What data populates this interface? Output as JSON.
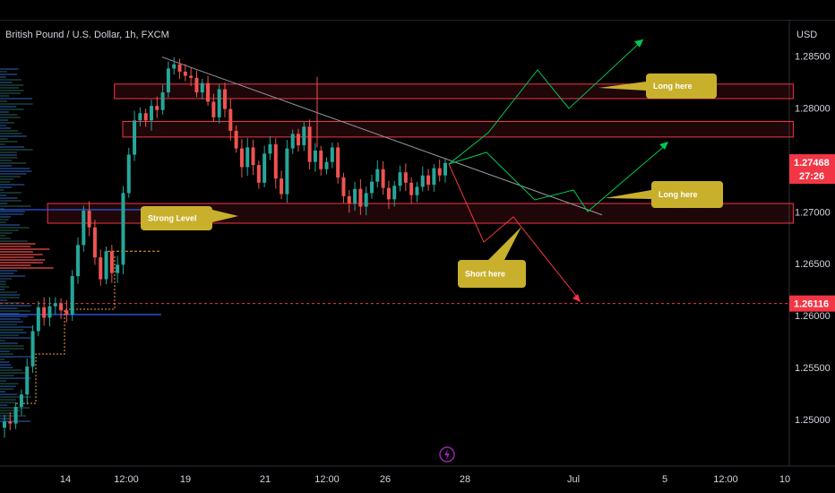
{
  "header": {
    "symbol_label": "British Pound / U.S. Dollar, 1h, FXCM"
  },
  "chart_data": {
    "type": "candlestick",
    "currency_label": "USD",
    "ylim": [
      1.2455,
      1.2885
    ],
    "y_ticks": [
      {
        "value": 1.285,
        "label": "1.28500"
      },
      {
        "value": 1.28,
        "label": "1.28000"
      },
      {
        "value": 1.275,
        "label": "1.27500"
      },
      {
        "value": 1.27,
        "label": "1.27000"
      },
      {
        "value": 1.265,
        "label": "1.26500"
      },
      {
        "value": 1.26,
        "label": "1.26000"
      },
      {
        "value": 1.255,
        "label": "1.25500"
      },
      {
        "value": 1.25,
        "label": "1.25000"
      }
    ],
    "x_ticks": [
      "14",
      "12:00",
      "19",
      "21",
      "12:00",
      "26",
      "28",
      "Jul",
      "5",
      "12:00",
      "10"
    ],
    "current_price": {
      "value": 1.27468,
      "label": "1.27468",
      "countdown": "27:26",
      "color": "#f23645"
    },
    "target_price": {
      "value": 1.26116,
      "label": "1.26116",
      "color": "#f23645"
    },
    "close_series": [
      1.2498,
      1.2496,
      1.2512,
      1.2524,
      1.2551,
      1.2585,
      1.2608,
      1.2598,
      1.2609,
      1.2612,
      1.2605,
      1.2601,
      1.2638,
      1.2668,
      1.2701,
      1.2685,
      1.2656,
      1.2635,
      1.2662,
      1.2641,
      1.2649,
      1.2718,
      1.2755,
      1.2788,
      1.2795,
      1.2788,
      1.2802,
      1.2798,
      1.2815,
      1.2838,
      1.2842,
      1.2835,
      1.2831,
      1.2829,
      1.2815,
      1.2824,
      1.2806,
      1.2791,
      1.2818,
      1.2799,
      1.2778,
      1.2761,
      1.2743,
      1.2762,
      1.2745,
      1.2728,
      1.2756,
      1.2765,
      1.2732,
      1.2717,
      1.2761,
      1.2775,
      1.2764,
      1.2782,
      1.2748,
      1.2759,
      1.2741,
      1.2748,
      1.2762,
      1.2733,
      1.2715,
      1.2708,
      1.2722,
      1.2705,
      1.2718,
      1.2729,
      1.2741,
      1.2723,
      1.2712,
      1.2725,
      1.2738,
      1.2728,
      1.2716,
      1.2724,
      1.2735,
      1.2726,
      1.2742,
      1.2735,
      1.2747
    ],
    "zones": [
      {
        "name": "upper-resistance-zone",
        "low": 1.2809,
        "high": 1.2823,
        "x_start": 0.137,
        "x_end": 0.95
      },
      {
        "name": "mid-resistance-zone",
        "low": 1.2772,
        "high": 1.2787,
        "x_start": 0.147,
        "x_end": 0.95
      },
      {
        "name": "support-zone",
        "low": 1.2689,
        "high": 1.2708,
        "x_start": 0.057,
        "x_end": 0.95
      }
    ],
    "levels": [
      {
        "name": "strong-level-line",
        "value": 1.2702,
        "color": "#2962ff"
      },
      {
        "name": "lower-blue-line",
        "value": 1.2601,
        "color": "#2962ff"
      }
    ],
    "annotations": [
      {
        "name": "long-here-top",
        "text": "Long here"
      },
      {
        "name": "long-here-mid",
        "text": "Long here"
      },
      {
        "name": "strong-level",
        "text": "Strong Level"
      },
      {
        "name": "short-here",
        "text": "Short here"
      }
    ],
    "colors": {
      "up": "#26a69a",
      "down": "#ef5350",
      "bullish_path": "#00c853",
      "bearish_path": "#f23645",
      "callout": "#c8b02d",
      "zone_border": "#f23645",
      "trendline": "#9598a1"
    }
  }
}
